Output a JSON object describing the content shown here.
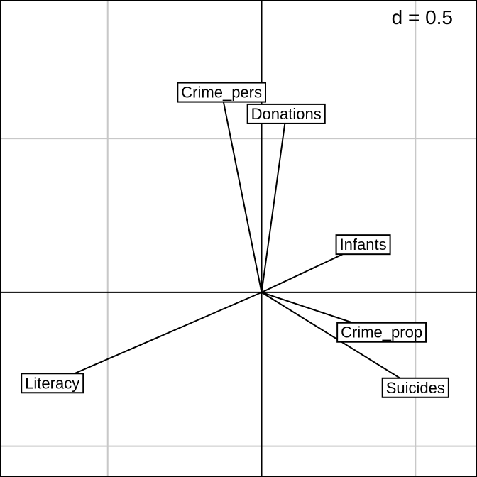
{
  "chart_data": {
    "type": "biplot-arrows",
    "scale_label": "d = 0.5",
    "grid_step": 0.5,
    "xlim": [
      -0.85,
      0.7
    ],
    "ylim": [
      -0.6,
      0.95
    ],
    "variables": [
      {
        "name": "Crime_pers",
        "x": -0.13,
        "y": 0.65
      },
      {
        "name": "Donations",
        "x": 0.08,
        "y": 0.58
      },
      {
        "name": "Infants",
        "x": 0.33,
        "y": 0.155
      },
      {
        "name": "Crime_prop",
        "x": 0.39,
        "y": -0.13
      },
      {
        "name": "Suicides",
        "x": 0.5,
        "y": -0.31
      },
      {
        "name": "Literacy",
        "x": -0.68,
        "y": -0.295
      }
    ]
  }
}
